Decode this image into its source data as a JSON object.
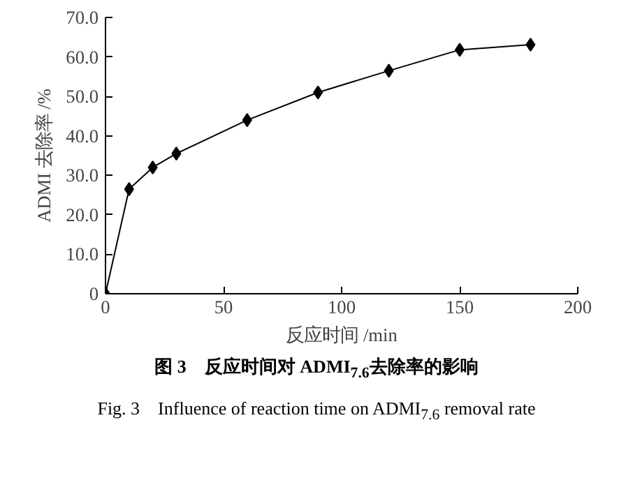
{
  "chart_data": {
    "type": "line",
    "xlabel": "反应时间 /min",
    "ylabel": "ADMI 去除率 /%",
    "x": [
      0,
      10,
      20,
      30,
      60,
      90,
      120,
      150,
      180
    ],
    "values": [
      0,
      26.5,
      32,
      35.5,
      44,
      51,
      56.5,
      61.8,
      63.1
    ],
    "color": "#000000",
    "marker": "diamond",
    "line_style": "solid",
    "grid": false,
    "xlim": [
      0,
      200
    ],
    "xticks": [
      0,
      50,
      100,
      150,
      200
    ],
    "ylim": [
      0,
      70
    ],
    "yticks": [
      {
        "value": 0,
        "label": "0"
      },
      {
        "value": 10,
        "label": "10.0"
      },
      {
        "value": 20,
        "label": "20.0"
      },
      {
        "value": 30,
        "label": "30.0"
      },
      {
        "value": 40,
        "label": "40.0"
      },
      {
        "value": 50,
        "label": "50.0"
      },
      {
        "value": 60,
        "label": "60.0"
      },
      {
        "value": 70,
        "label": "70.0"
      }
    ],
    "annotations": [
      "图 3　反应时间对 ADMI$_{7.6}$去除率的影响",
      "Fig. 3　Influence of reaction time on ADMI$_{7.6}$ removal rate"
    ]
  }
}
